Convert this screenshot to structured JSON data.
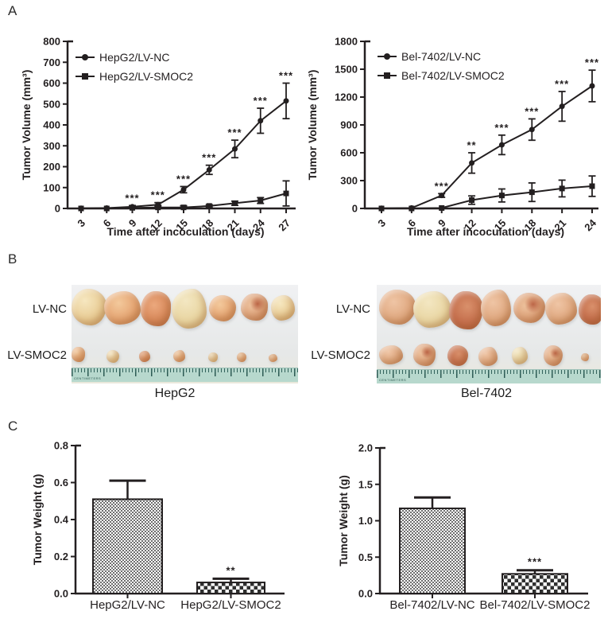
{
  "panels": {
    "a": "A",
    "b": "B",
    "c": "C"
  },
  "colors": {
    "ink": "#231f20",
    "photo_bg": "#edeef0",
    "ruler": "#b7d8cd"
  },
  "photos": [
    {
      "row_labels": [
        "LV-NC",
        "LV-SMOC2"
      ],
      "caption": "HepG2",
      "ruler_text": "CENTIMETERS"
    },
    {
      "row_labels": [
        "LV-NC",
        "LV-SMOC2"
      ],
      "caption": "Bel-7402",
      "ruler_text": "CENTIMETERS"
    }
  ],
  "chart_data": [
    {
      "id": "hepg2-volume",
      "type": "line",
      "ylabel": "Tumor Volume (mm³)",
      "xlabel": "Time after incoculation (days)",
      "x": [
        3,
        6,
        9,
        12,
        15,
        18,
        21,
        24,
        27
      ],
      "ylim": [
        0,
        800
      ],
      "ystep": 100,
      "grid": false,
      "legend_position": "top-left",
      "series": [
        {
          "name": "HepG2/LV-NC",
          "marker": "circle",
          "values": [
            1,
            2,
            8,
            18,
            90,
            185,
            285,
            420,
            515
          ],
          "errors": [
            2,
            3,
            6,
            10,
            15,
            22,
            42,
            60,
            85
          ]
        },
        {
          "name": "HepG2/LV-SMOC2",
          "marker": "square",
          "values": [
            0,
            0,
            3,
            5,
            5,
            12,
            25,
            38,
            72
          ],
          "errors": [
            1,
            1,
            3,
            10,
            8,
            6,
            10,
            14,
            60
          ]
        }
      ],
      "significance": [
        {
          "x": 9,
          "label": "***"
        },
        {
          "x": 12,
          "label": "***"
        },
        {
          "x": 15,
          "label": "***"
        },
        {
          "x": 18,
          "label": "***"
        },
        {
          "x": 21,
          "label": "***"
        },
        {
          "x": 24,
          "label": "***"
        },
        {
          "x": 27,
          "label": "***"
        }
      ]
    },
    {
      "id": "bel7402-volume",
      "type": "line",
      "ylabel": "Tumor Volume (mm³)",
      "xlabel": "Time after incoculation (days)",
      "x": [
        3,
        6,
        9,
        12,
        15,
        18,
        21,
        24
      ],
      "ylim": [
        0,
        1800
      ],
      "ystep": 300,
      "grid": false,
      "legend_position": "top-left",
      "series": [
        {
          "name": "Bel-7402/LV-NC",
          "marker": "circle",
          "values": [
            2,
            5,
            140,
            490,
            685,
            850,
            1100,
            1320
          ],
          "errors": [
            3,
            5,
            20,
            110,
            105,
            115,
            160,
            170
          ]
        },
        {
          "name": "Bel-7402/LV-SMOC2",
          "marker": "square",
          "values": [
            0,
            0,
            5,
            90,
            140,
            175,
            215,
            240
          ],
          "errors": [
            1,
            2,
            5,
            45,
            70,
            100,
            90,
            110
          ]
        }
      ],
      "significance": [
        {
          "x": 9,
          "label": "***"
        },
        {
          "x": 12,
          "label": "**"
        },
        {
          "x": 15,
          "label": "***"
        },
        {
          "x": 18,
          "label": "***"
        },
        {
          "x": 21,
          "label": "***"
        },
        {
          "x": 24,
          "label": "***"
        }
      ]
    },
    {
      "id": "hepg2-weight",
      "type": "bar",
      "ylabel": "Tumor Weight (g)",
      "categories": [
        "HepG2/LV-NC",
        "HepG2/LV-SMOC2"
      ],
      "values": [
        0.51,
        0.06
      ],
      "errors": [
        0.1,
        0.02
      ],
      "ylim": [
        0,
        0.8
      ],
      "ystep": 0.2,
      "bar_patterns": [
        "fine-checker",
        "coarse-checker"
      ],
      "significance": [
        {
          "index": 1,
          "label": "**"
        }
      ]
    },
    {
      "id": "bel7402-weight",
      "type": "bar",
      "ylabel": "Tumor Weight (g)",
      "categories": [
        "Bel-7402/LV-NC",
        "Bel-7402/LV-SMOC2"
      ],
      "values": [
        1.17,
        0.27
      ],
      "errors": [
        0.15,
        0.05
      ],
      "ylim": [
        0,
        2.0
      ],
      "ystep": 0.5,
      "bar_patterns": [
        "fine-checker",
        "coarse-checker"
      ],
      "significance": [
        {
          "index": 1,
          "label": "***"
        }
      ]
    }
  ]
}
